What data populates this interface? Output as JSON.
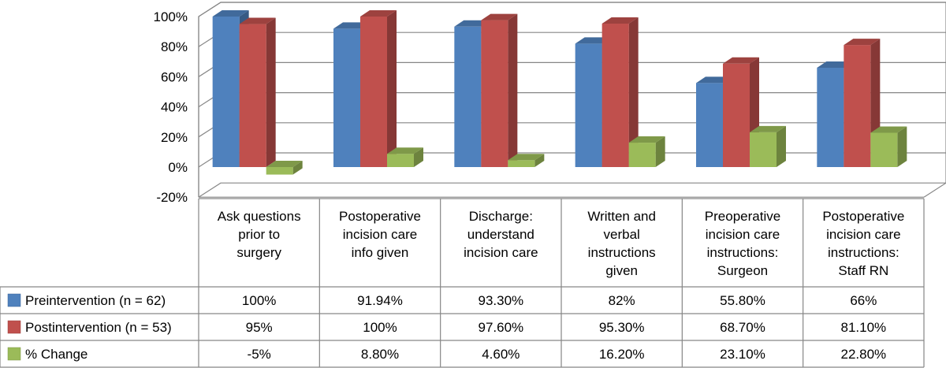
{
  "chart_data": {
    "type": "bar",
    "categories": [
      [
        "Ask questions",
        "prior to",
        "surgery"
      ],
      [
        "Postoperative",
        "incision care",
        "info given"
      ],
      [
        "Discharge:",
        "understand",
        "incision care"
      ],
      [
        "Written and",
        "verbal",
        "instructions",
        "given"
      ],
      [
        "Preoperative",
        "incision care",
        "instructions:",
        "Surgeon"
      ],
      [
        "Postoperative",
        "incision care",
        "instructions:",
        "Staff RN"
      ]
    ],
    "series": [
      {
        "name": "Preintervention (n = 62)",
        "color": "#4F81BD",
        "values": [
          100,
          91.94,
          93.3,
          82,
          55.8,
          66
        ],
        "labels": [
          "100%",
          "91.94%",
          "93.30%",
          "82%",
          "55.80%",
          "66%"
        ]
      },
      {
        "name": "Postintervention (n = 53)",
        "color": "#C0504D",
        "values": [
          95,
          100,
          97.6,
          95.3,
          68.7,
          81.1
        ],
        "labels": [
          "95%",
          "100%",
          "97.60%",
          "95.30%",
          "68.70%",
          "81.10%"
        ]
      },
      {
        "name": "% Change",
        "color": "#9BBB59",
        "values": [
          -5,
          8.8,
          4.6,
          16.2,
          23.1,
          22.8
        ],
        "labels": [
          "-5%",
          "8.80%",
          "4.60%",
          "16.20%",
          "23.10%",
          "22.80%"
        ]
      }
    ],
    "ylim": [
      -20,
      100
    ],
    "yticks": [
      "100%",
      "80%",
      "60%",
      "40%",
      "20%",
      "0%",
      "-20%"
    ],
    "grid": true,
    "legend": "data-table",
    "three_d": true
  }
}
